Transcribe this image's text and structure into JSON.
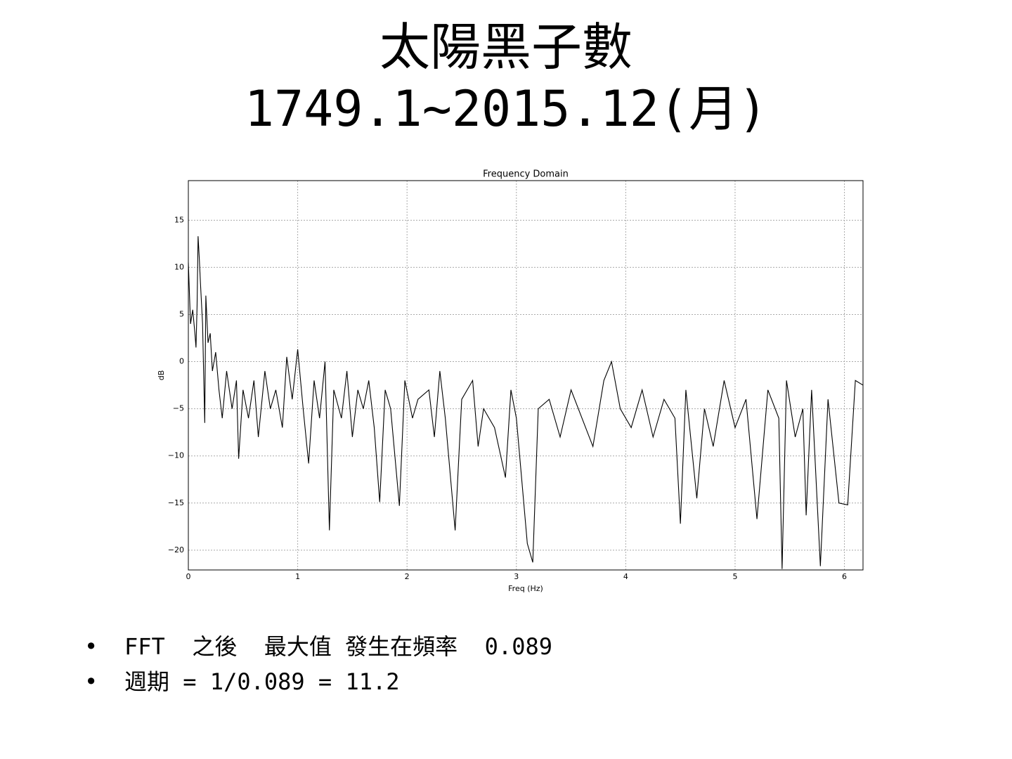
{
  "header": {
    "title": "太陽黑子數",
    "subtitle": "1749.1~2015.12(月)"
  },
  "chart_data": {
    "type": "line",
    "title": "Frequency Domain",
    "x_label": "Freq (Hz)",
    "y_label": "dB",
    "color": "#000000",
    "grid": true,
    "xlim": [
      0,
      6.17
    ],
    "xticks": [
      0,
      1,
      2,
      3,
      4,
      5,
      6
    ],
    "ylim": [
      -22.1,
      19.2
    ],
    "yticks": [
      {
        "value": -20,
        "label": "−20"
      },
      {
        "value": -15,
        "label": "−15"
      },
      {
        "value": -10,
        "label": "−10"
      },
      {
        "value": -5,
        "label": "−5"
      },
      0,
      5,
      10,
      15
    ],
    "x": [
      0,
      0.02,
      0.04,
      0.06,
      0.07,
      0.08,
      0.089,
      0.1,
      0.11,
      0.13,
      0.15,
      0.16,
      0.18,
      0.2,
      0.22,
      0.25,
      0.28,
      0.31,
      0.35,
      0.4,
      0.44,
      0.46,
      0.5,
      0.55,
      0.6,
      0.64,
      0.7,
      0.75,
      0.8,
      0.86,
      0.9,
      0.95,
      1.0,
      1.05,
      1.1,
      1.15,
      1.2,
      1.25,
      1.29,
      1.33,
      1.4,
      1.45,
      1.5,
      1.55,
      1.6,
      1.65,
      1.7,
      1.75,
      1.8,
      1.85,
      1.93,
      1.98,
      2.05,
      2.1,
      2.2,
      2.25,
      2.3,
      2.35,
      2.44,
      2.5,
      2.6,
      2.65,
      2.7,
      2.8,
      2.9,
      2.95,
      3.0,
      3.1,
      3.15,
      3.2,
      3.3,
      3.4,
      3.5,
      3.6,
      3.7,
      3.8,
      3.87,
      3.95,
      4.05,
      4.15,
      4.25,
      4.35,
      4.45,
      4.5,
      4.55,
      4.65,
      4.72,
      4.8,
      4.9,
      5.0,
      5.1,
      5.2,
      5.3,
      5.4,
      5.43,
      5.47,
      5.55,
      5.62,
      5.65,
      5.7,
      5.78,
      5.85,
      5.95,
      6.03,
      6.1,
      6.17
    ],
    "values": [
      10.5,
      4,
      5.5,
      3,
      1.5,
      6,
      13.3,
      11,
      8.5,
      4,
      -6.5,
      7,
      2,
      3,
      -1,
      1,
      -3,
      -6,
      -1,
      -5,
      -2,
      -10.3,
      -3,
      -6,
      -2,
      -8,
      -1,
      -5,
      -3,
      -7,
      0.5,
      -4,
      1.3,
      -5,
      -10.8,
      -2,
      -6,
      0,
      -17.9,
      -3,
      -6,
      -1,
      -8,
      -3,
      -5,
      -2,
      -7,
      -14.9,
      -3,
      -5,
      -15.3,
      -2,
      -6,
      -4,
      -3,
      -8,
      -1,
      -6,
      -17.9,
      -4,
      -2,
      -9,
      -5,
      -7,
      -12.3,
      -3,
      -6,
      -19.3,
      -21.3,
      -5,
      -4,
      -8,
      -3,
      -6,
      -9,
      -2,
      0,
      -5,
      -7,
      -3,
      -8,
      -4,
      -6,
      -17.2,
      -3,
      -14.5,
      -5,
      -9,
      -2,
      -7,
      -4,
      -16.7,
      -3,
      -6,
      -22,
      -2,
      -8,
      -5,
      -16.3,
      -3,
      -21.7,
      -4,
      -15,
      -15.2,
      -2,
      -2.5
    ]
  },
  "bullets": [
    "FFT  之後  最大值 發生在頻率  0.089",
    "週期 = 1/0.089 = 11.2"
  ]
}
